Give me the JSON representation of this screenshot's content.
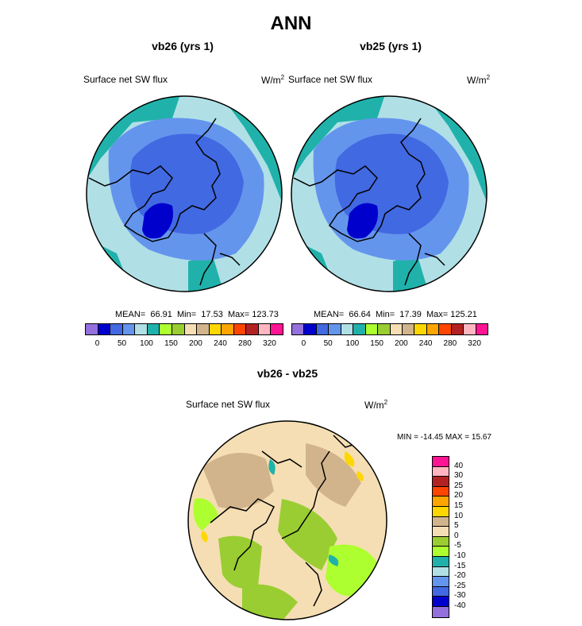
{
  "title": "ANN",
  "panel_left": {
    "subtitle": "vb26 (yrs 1)",
    "field": "Surface net SW flux",
    "units": "W/m",
    "units_sup": "2",
    "mean_label": "MEAN=",
    "mean": "66.91",
    "min_label": "Min=",
    "min": "17.53",
    "max_label": "Max=",
    "max": "123.73"
  },
  "panel_right": {
    "subtitle": "vb25 (yrs 1)",
    "field": "Surface net SW flux",
    "units": "W/m",
    "units_sup": "2",
    "mean_label": "MEAN=",
    "mean": "66.64",
    "min_label": "Min=",
    "min": "17.39",
    "max_label": "Max=",
    "max": "125.21"
  },
  "colorbar_ticks": [
    "0",
    "50",
    "100",
    "150",
    "200",
    "240",
    "280",
    "320"
  ],
  "colorbar_colors": [
    "#9370db",
    "#0000cd",
    "#4169e1",
    "#6495ed",
    "#b0e0e6",
    "#20b2aa",
    "#adff2f",
    "#9acd32",
    "#f5deb3",
    "#d2b48c",
    "#ffd700",
    "#ffa500",
    "#ff4500",
    "#b22222",
    "#ffb6c1",
    "#ff1493"
  ],
  "diff": {
    "subtitle": "vb26 - vb25",
    "field": "Surface net SW flux",
    "units": "W/m",
    "units_sup": "2",
    "minmax": "MIN = -14.45 MAX =  15.67",
    "ticks": [
      "40",
      "30",
      "25",
      "20",
      "15",
      "10",
      "5",
      "0",
      "-5",
      "-10",
      "-15",
      "-20",
      "-25",
      "-30",
      "-40"
    ],
    "colors": [
      "#ff1493",
      "#ffb6c1",
      "#b22222",
      "#ff4500",
      "#ffa500",
      "#ffd700",
      "#d2b48c",
      "#f5deb3",
      "#9acd32",
      "#adff2f",
      "#20b2aa",
      "#b0e0e6",
      "#6495ed",
      "#4169e1",
      "#0000cd",
      "#9370db"
    ]
  }
}
